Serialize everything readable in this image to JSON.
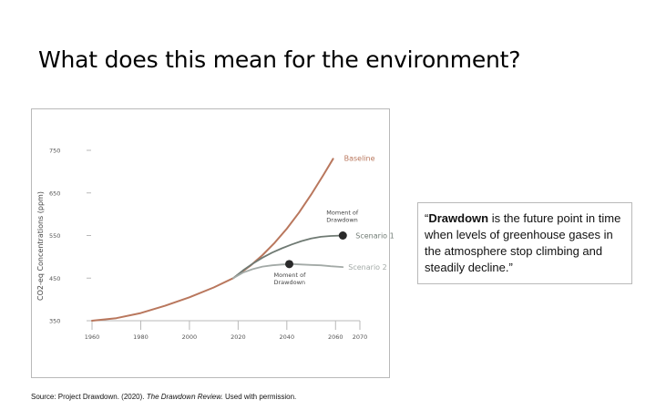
{
  "slide": {
    "title": "What does this mean for the environment?"
  },
  "quote": {
    "open": "“",
    "term": "Drawdown",
    "rest": " is the future point in time when levels of greenhouse gases in the atmosphere stop climbing and steadily decline.”"
  },
  "source": {
    "prefix": "Source: Project Drawdown. (2020). ",
    "work": "The Drawdown Review.",
    "suffix": " Used with permission."
  },
  "colors": {
    "baseline": "#b9775d",
    "scenario1": "#6f7a73",
    "scenario2": "#a3aaa7",
    "grid": "#b8b8b8"
  },
  "chart_data": {
    "type": "line",
    "ylabel": "CO2-eq Concentrations (ppm)",
    "xlim": [
      1960,
      2070
    ],
    "ylim": [
      350,
      750
    ],
    "x_ticks": [
      1960,
      1980,
      2000,
      2020,
      2040,
      2060,
      2070
    ],
    "y_ticks": [
      350,
      450,
      550,
      650,
      750
    ],
    "y_tick_labels": [
      "350",
      "450",
      "550",
      "650",
      "750"
    ],
    "grid": false,
    "series": [
      {
        "name": "Baseline",
        "x": [
          1960,
          1970,
          1980,
          1990,
          2000,
          2010,
          2018,
          2025,
          2030,
          2035,
          2040,
          2045,
          2050,
          2055,
          2059
        ],
        "y": [
          350,
          356,
          368,
          385,
          405,
          428,
          450,
          479,
          504,
          533,
          566,
          604,
          646,
          692,
          730
        ]
      },
      {
        "name": "Scenario 1",
        "x": [
          2018,
          2022,
          2026,
          2030,
          2034,
          2038,
          2042,
          2046,
          2050,
          2054,
          2058,
          2063
        ],
        "y": [
          450,
          468,
          484,
          498,
          510,
          520,
          529,
          537,
          543,
          547,
          549,
          550
        ]
      },
      {
        "name": "Scenario 2",
        "x": [
          2018,
          2022,
          2026,
          2030,
          2034,
          2038,
          2042,
          2046,
          2050,
          2054,
          2058,
          2063
        ],
        "y": [
          450,
          463,
          471,
          477,
          480,
          482,
          483,
          482,
          481,
          480,
          478,
          476
        ]
      }
    ],
    "annotations": [
      {
        "name": "moment-of-drawdown-1",
        "label_lines": [
          "Moment of",
          "Drawdown"
        ],
        "point": [
          2063,
          550
        ]
      },
      {
        "name": "moment-of-drawdown-2",
        "label_lines": [
          "Moment of",
          "Drawdown"
        ],
        "point": [
          2041,
          483
        ]
      }
    ]
  }
}
